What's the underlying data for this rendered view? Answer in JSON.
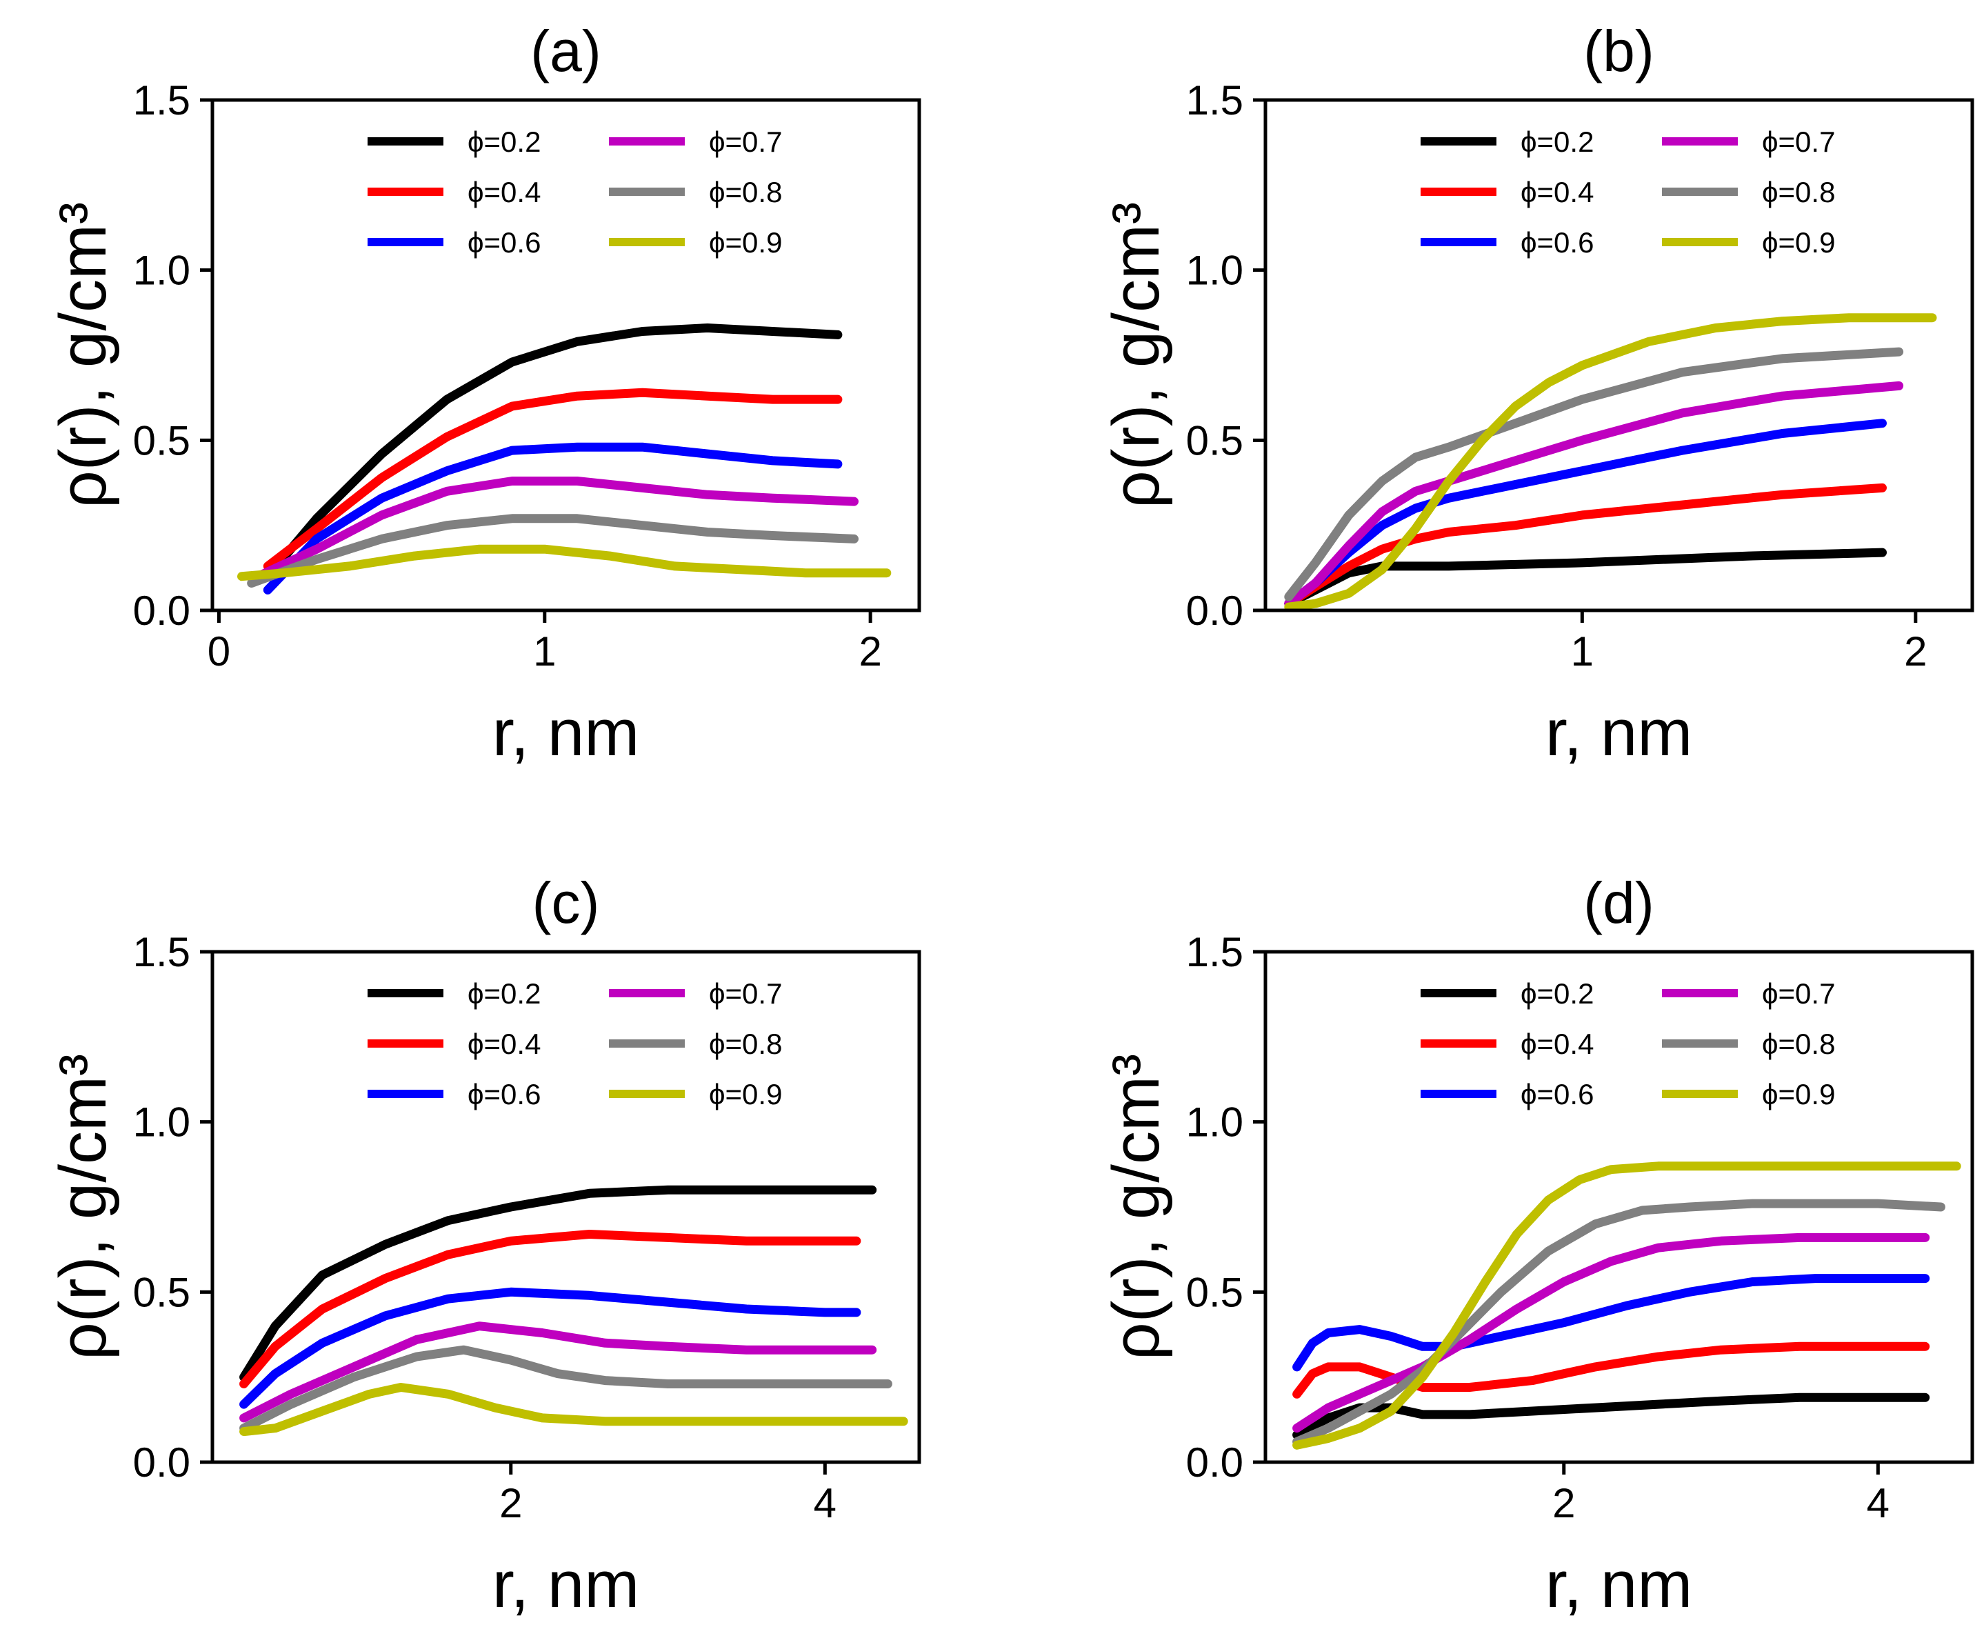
{
  "figure": {
    "layout": "2x2 grid"
  },
  "chart_data": [
    {
      "type": "line",
      "title": "(a)",
      "xlabel": "r, nm",
      "ylabel": "ρ(r), g/cm³",
      "xlim": [
        -0.02,
        2.15
      ],
      "ylim": [
        0,
        1.5
      ],
      "xticks": [
        0,
        1,
        2
      ],
      "xtick_labels": [
        "0",
        "1",
        "2"
      ],
      "yticks": [
        0,
        0.5,
        1.0,
        1.5
      ],
      "ytick_labels": [
        "0.0",
        "0.5",
        "1.0",
        "1.5"
      ],
      "legend": {
        "position": "top-right",
        "columns": 2
      },
      "series": [
        {
          "name": "ϕ=0.2",
          "color": "#000000",
          "x": [
            0.15,
            0.3,
            0.5,
            0.7,
            0.9,
            1.1,
            1.3,
            1.5,
            1.7,
            1.9
          ],
          "y": [
            0.1,
            0.27,
            0.46,
            0.62,
            0.73,
            0.79,
            0.82,
            0.83,
            0.82,
            0.81
          ]
        },
        {
          "name": "ϕ=0.4",
          "color": "#ff0000",
          "x": [
            0.15,
            0.3,
            0.5,
            0.7,
            0.9,
            1.1,
            1.3,
            1.5,
            1.7,
            1.9
          ],
          "y": [
            0.13,
            0.24,
            0.39,
            0.51,
            0.6,
            0.63,
            0.64,
            0.63,
            0.62,
            0.62
          ]
        },
        {
          "name": "ϕ=0.6",
          "color": "#0000ff",
          "x": [
            0.15,
            0.3,
            0.5,
            0.7,
            0.9,
            1.1,
            1.3,
            1.5,
            1.7,
            1.9
          ],
          "y": [
            0.06,
            0.21,
            0.33,
            0.41,
            0.47,
            0.48,
            0.48,
            0.46,
            0.44,
            0.43
          ]
        },
        {
          "name": "ϕ=0.7",
          "color": "#bf00bf",
          "x": [
            0.12,
            0.3,
            0.5,
            0.7,
            0.9,
            1.1,
            1.3,
            1.5,
            1.7,
            1.95
          ],
          "y": [
            0.1,
            0.18,
            0.28,
            0.35,
            0.38,
            0.38,
            0.36,
            0.34,
            0.33,
            0.32
          ]
        },
        {
          "name": "ϕ=0.8",
          "color": "#808080",
          "x": [
            0.1,
            0.3,
            0.5,
            0.7,
            0.9,
            1.1,
            1.3,
            1.5,
            1.7,
            1.95
          ],
          "y": [
            0.08,
            0.15,
            0.21,
            0.25,
            0.27,
            0.27,
            0.25,
            0.23,
            0.22,
            0.21
          ]
        },
        {
          "name": "ϕ=0.9",
          "color": "#bfbf00",
          "x": [
            0.07,
            0.2,
            0.4,
            0.6,
            0.8,
            1.0,
            1.2,
            1.4,
            1.6,
            1.8,
            2.05
          ],
          "y": [
            0.1,
            0.11,
            0.13,
            0.16,
            0.18,
            0.18,
            0.16,
            0.13,
            0.12,
            0.11,
            0.11
          ]
        }
      ]
    },
    {
      "type": "line",
      "title": "(b)",
      "xlabel": "r, nm",
      "ylabel": "ρ(r), g/cm³",
      "xlim": [
        0.05,
        2.17
      ],
      "ylim": [
        0,
        1.5
      ],
      "xticks": [
        1,
        2
      ],
      "xtick_labels": [
        "1",
        "2"
      ],
      "yticks": [
        0,
        0.5,
        1.0,
        1.5
      ],
      "ytick_labels": [
        "0.0",
        "0.5",
        "1.0",
        "1.5"
      ],
      "legend": {
        "position": "top-right",
        "columns": 2
      },
      "series": [
        {
          "name": "ϕ=0.2",
          "color": "#000000",
          "x": [
            0.12,
            0.2,
            0.3,
            0.4,
            0.6,
            1.0,
            1.5,
            1.9
          ],
          "y": [
            0.02,
            0.06,
            0.11,
            0.13,
            0.13,
            0.14,
            0.16,
            0.17
          ]
        },
        {
          "name": "ϕ=0.4",
          "color": "#ff0000",
          "x": [
            0.12,
            0.2,
            0.3,
            0.4,
            0.5,
            0.6,
            0.8,
            1.0,
            1.3,
            1.6,
            1.9
          ],
          "y": [
            0.02,
            0.07,
            0.13,
            0.18,
            0.21,
            0.23,
            0.25,
            0.28,
            0.31,
            0.34,
            0.36
          ]
        },
        {
          "name": "ϕ=0.6",
          "color": "#0000ff",
          "x": [
            0.12,
            0.2,
            0.3,
            0.4,
            0.5,
            0.6,
            0.8,
            1.0,
            1.3,
            1.6,
            1.9
          ],
          "y": [
            0.02,
            0.08,
            0.17,
            0.25,
            0.3,
            0.33,
            0.37,
            0.41,
            0.47,
            0.52,
            0.55
          ]
        },
        {
          "name": "ϕ=0.7",
          "color": "#bf00bf",
          "x": [
            0.12,
            0.2,
            0.3,
            0.4,
            0.5,
            0.6,
            0.8,
            1.0,
            1.3,
            1.6,
            1.95
          ],
          "y": [
            0.02,
            0.08,
            0.19,
            0.29,
            0.35,
            0.38,
            0.44,
            0.5,
            0.58,
            0.63,
            0.66
          ]
        },
        {
          "name": "ϕ=0.8",
          "color": "#808080",
          "x": [
            0.12,
            0.2,
            0.3,
            0.4,
            0.5,
            0.6,
            0.8,
            1.0,
            1.3,
            1.6,
            1.95
          ],
          "y": [
            0.04,
            0.14,
            0.28,
            0.38,
            0.45,
            0.48,
            0.55,
            0.62,
            0.7,
            0.74,
            0.76
          ]
        },
        {
          "name": "ϕ=0.9",
          "color": "#bfbf00",
          "x": [
            0.12,
            0.2,
            0.3,
            0.4,
            0.5,
            0.6,
            0.7,
            0.8,
            0.9,
            1.0,
            1.2,
            1.4,
            1.6,
            1.8,
            2.05
          ],
          "y": [
            0.01,
            0.02,
            0.05,
            0.12,
            0.24,
            0.38,
            0.5,
            0.6,
            0.67,
            0.72,
            0.79,
            0.83,
            0.85,
            0.86,
            0.86
          ]
        }
      ]
    },
    {
      "type": "line",
      "title": "(c)",
      "xlabel": "r, nm",
      "ylabel": "ρ(r), g/cm³",
      "xlim": [
        0.1,
        4.6
      ],
      "ylim": [
        0,
        1.5
      ],
      "xticks": [
        2,
        4
      ],
      "xtick_labels": [
        "2",
        "4"
      ],
      "yticks": [
        0,
        0.5,
        1.0,
        1.5
      ],
      "ytick_labels": [
        "0.0",
        "0.5",
        "1.0",
        "1.5"
      ],
      "legend": {
        "position": "top-right",
        "columns": 2
      },
      "series": [
        {
          "name": "ϕ=0.2",
          "color": "#000000",
          "x": [
            0.3,
            0.5,
            0.8,
            1.2,
            1.6,
            2.0,
            2.5,
            3.0,
            3.5,
            4.0,
            4.3
          ],
          "y": [
            0.25,
            0.4,
            0.55,
            0.64,
            0.71,
            0.75,
            0.79,
            0.8,
            0.8,
            0.8,
            0.8
          ]
        },
        {
          "name": "ϕ=0.4",
          "color": "#ff0000",
          "x": [
            0.3,
            0.5,
            0.8,
            1.2,
            1.6,
            2.0,
            2.5,
            3.0,
            3.5,
            4.0,
            4.2
          ],
          "y": [
            0.23,
            0.34,
            0.45,
            0.54,
            0.61,
            0.65,
            0.67,
            0.66,
            0.65,
            0.65,
            0.65
          ]
        },
        {
          "name": "ϕ=0.6",
          "color": "#0000ff",
          "x": [
            0.3,
            0.5,
            0.8,
            1.2,
            1.6,
            2.0,
            2.5,
            3.0,
            3.5,
            4.0,
            4.2
          ],
          "y": [
            0.17,
            0.26,
            0.35,
            0.43,
            0.48,
            0.5,
            0.49,
            0.47,
            0.45,
            0.44,
            0.44
          ]
        },
        {
          "name": "ϕ=0.7",
          "color": "#bf00bf",
          "x": [
            0.3,
            0.6,
            1.0,
            1.4,
            1.8,
            2.2,
            2.6,
            3.0,
            3.5,
            4.0,
            4.3
          ],
          "y": [
            0.13,
            0.2,
            0.28,
            0.36,
            0.4,
            0.38,
            0.35,
            0.34,
            0.33,
            0.33,
            0.33
          ]
        },
        {
          "name": "ϕ=0.8",
          "color": "#808080",
          "x": [
            0.3,
            0.6,
            1.0,
            1.4,
            1.7,
            2.0,
            2.3,
            2.6,
            3.0,
            3.5,
            4.0,
            4.4
          ],
          "y": [
            0.1,
            0.17,
            0.25,
            0.31,
            0.33,
            0.3,
            0.26,
            0.24,
            0.23,
            0.23,
            0.23,
            0.23
          ]
        },
        {
          "name": "ϕ=0.9",
          "color": "#bfbf00",
          "x": [
            0.3,
            0.5,
            0.8,
            1.1,
            1.3,
            1.6,
            1.9,
            2.2,
            2.6,
            3.0,
            3.5,
            4.0,
            4.5
          ],
          "y": [
            0.09,
            0.1,
            0.15,
            0.2,
            0.22,
            0.2,
            0.16,
            0.13,
            0.12,
            0.12,
            0.12,
            0.12,
            0.12
          ]
        }
      ]
    },
    {
      "type": "line",
      "title": "(d)",
      "xlabel": "r, nm",
      "ylabel": "ρ(r), g/cm³",
      "xlim": [
        0.1,
        4.6
      ],
      "ylim": [
        0,
        1.5
      ],
      "xticks": [
        2,
        4
      ],
      "xtick_labels": [
        "2",
        "4"
      ],
      "yticks": [
        0,
        0.5,
        1.0,
        1.5
      ],
      "ytick_labels": [
        "0.0",
        "0.5",
        "1.0",
        "1.5"
      ],
      "legend": {
        "position": "top-right",
        "columns": 2
      },
      "series": [
        {
          "name": "ϕ=0.2",
          "color": "#000000",
          "x": [
            0.3,
            0.5,
            0.7,
            0.9,
            1.1,
            1.4,
            1.8,
            2.2,
            2.6,
            3.0,
            3.5,
            4.0,
            4.3
          ],
          "y": [
            0.08,
            0.13,
            0.16,
            0.16,
            0.14,
            0.14,
            0.15,
            0.16,
            0.17,
            0.18,
            0.19,
            0.19,
            0.19
          ]
        },
        {
          "name": "ϕ=0.4",
          "color": "#ff0000",
          "x": [
            0.3,
            0.4,
            0.5,
            0.7,
            0.9,
            1.1,
            1.4,
            1.8,
            2.2,
            2.6,
            3.0,
            3.5,
            4.0,
            4.3
          ],
          "y": [
            0.2,
            0.26,
            0.28,
            0.28,
            0.25,
            0.22,
            0.22,
            0.24,
            0.28,
            0.31,
            0.33,
            0.34,
            0.34,
            0.34
          ]
        },
        {
          "name": "ϕ=0.6",
          "color": "#0000ff",
          "x": [
            0.3,
            0.4,
            0.5,
            0.7,
            0.9,
            1.1,
            1.3,
            1.6,
            2.0,
            2.4,
            2.8,
            3.2,
            3.6,
            4.0,
            4.3
          ],
          "y": [
            0.28,
            0.35,
            0.38,
            0.39,
            0.37,
            0.34,
            0.34,
            0.37,
            0.41,
            0.46,
            0.5,
            0.53,
            0.54,
            0.54,
            0.54
          ]
        },
        {
          "name": "ϕ=0.7",
          "color": "#bf00bf",
          "x": [
            0.3,
            0.5,
            0.7,
            0.9,
            1.1,
            1.4,
            1.7,
            2.0,
            2.3,
            2.6,
            3.0,
            3.5,
            4.0,
            4.3
          ],
          "y": [
            0.1,
            0.16,
            0.2,
            0.24,
            0.28,
            0.36,
            0.45,
            0.53,
            0.59,
            0.63,
            0.65,
            0.66,
            0.66,
            0.66
          ]
        },
        {
          "name": "ϕ=0.8",
          "color": "#808080",
          "x": [
            0.3,
            0.5,
            0.7,
            0.9,
            1.1,
            1.3,
            1.6,
            1.9,
            2.2,
            2.5,
            2.8,
            3.2,
            3.6,
            4.0,
            4.4
          ],
          "y": [
            0.06,
            0.1,
            0.15,
            0.2,
            0.27,
            0.36,
            0.5,
            0.62,
            0.7,
            0.74,
            0.75,
            0.76,
            0.76,
            0.76,
            0.75
          ]
        },
        {
          "name": "ϕ=0.9",
          "color": "#bfbf00",
          "x": [
            0.3,
            0.5,
            0.7,
            0.9,
            1.1,
            1.3,
            1.5,
            1.7,
            1.9,
            2.1,
            2.3,
            2.6,
            3.0,
            3.5,
            4.0,
            4.5
          ],
          "y": [
            0.05,
            0.07,
            0.1,
            0.15,
            0.25,
            0.38,
            0.53,
            0.67,
            0.77,
            0.83,
            0.86,
            0.87,
            0.87,
            0.87,
            0.87,
            0.87
          ]
        }
      ]
    }
  ]
}
